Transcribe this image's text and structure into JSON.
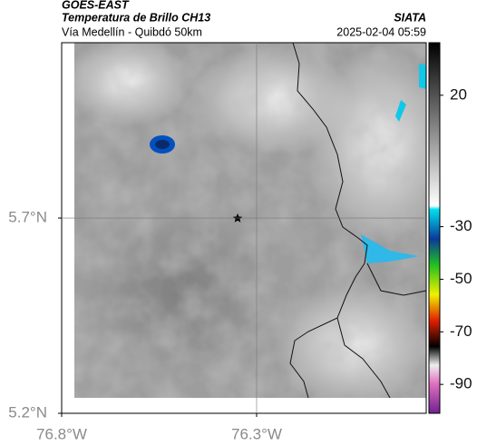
{
  "header": {
    "title": "GOES-EAST",
    "subtitle": "Temperatura de Brillo CH13",
    "source": "SIATA",
    "route": "Vía Medellín - Quibdó 50km",
    "timestamp": "2025-02-04 05:59"
  },
  "map": {
    "ylim": [
      5.2,
      6.149
    ],
    "xlim": [
      -76.8,
      -75.865
    ],
    "yticks": [
      {
        "value": 5.7,
        "label": "5.7°N"
      },
      {
        "value": 5.2,
        "label": "5.2°N"
      }
    ],
    "xticks": [
      {
        "value": -76.8,
        "label": "76.8°W"
      },
      {
        "value": -76.3,
        "label": "76.3°W"
      }
    ]
  },
  "colorbar": {
    "lim": [
      -101,
      40
    ],
    "ticks": [
      20,
      -30,
      -50,
      -70,
      -90
    ]
  }
}
